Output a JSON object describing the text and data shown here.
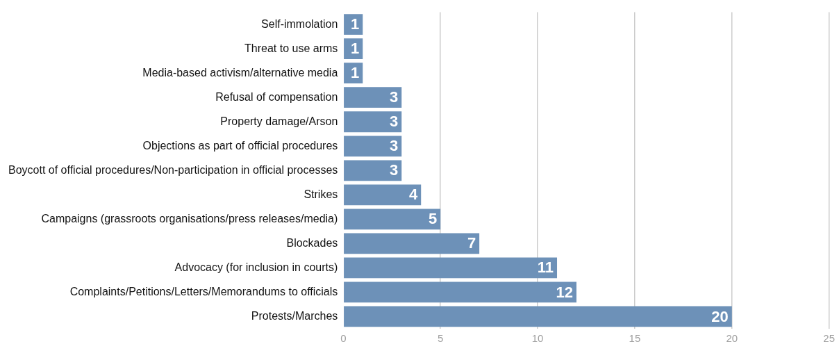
{
  "chart_data": {
    "type": "bar",
    "orientation": "horizontal",
    "categories": [
      "Self-immolation",
      "Threat to use arms",
      "Media-based activism/alternative media",
      "Refusal of compensation",
      "Property damage/Arson",
      "Objections as part of official procedures",
      "Boycott of official procedures/Non-participation in official processes",
      "Strikes",
      "Campaigns (grassroots organisations/press releases/media)",
      "Blockades",
      "Advocacy (for inclusion in courts)",
      "Complaints/Petitions/Letters/Memorandums to officials",
      "Protests/Marches"
    ],
    "values": [
      1,
      1,
      1,
      3,
      3,
      3,
      3,
      4,
      5,
      7,
      11,
      12,
      20
    ],
    "color": "#6d91b8",
    "xlim": [
      0,
      25
    ],
    "xticks": [
      0,
      5,
      10,
      15,
      20,
      25
    ],
    "grid": "x",
    "legend": false,
    "data_labels": true
  }
}
